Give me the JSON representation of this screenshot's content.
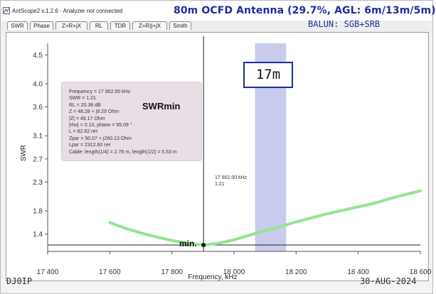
{
  "window": {
    "title": "AntScope2 v.1.2.6 - Analyzer not connected",
    "banner_title": "80m OCFD Antenna (29.7%, AGL: 6m/13m/5m)",
    "balun": "BALUN:   SGB+SRB"
  },
  "tabs": [
    {
      "label": "SWR",
      "active": true
    },
    {
      "label": "Phase",
      "active": false
    },
    {
      "label": "Z=R+jX",
      "active": false
    },
    {
      "label": "RL",
      "active": false
    },
    {
      "label": "TDR",
      "active": false
    },
    {
      "label": "Z=R||+jX",
      "active": false
    },
    {
      "label": "Smith",
      "active": false
    }
  ],
  "marker_info": {
    "lines": [
      "Frequency = 17 902.00 kHz",
      "SWR = 1.21",
      "RL = 20.38 dB",
      "Z = 48.28 + j9.29 Ohm",
      "|Z| = 49.17 Ohm",
      "|rho| = 0.10, phase = 95.09 °",
      "L = 82.62 nH",
      "Zpar = 50.07 + j260.13 Ohm",
      "Lpar = 2312.60 nH",
      "Cable: length(1/4) = 2.76 m, length(1/2) = 5.53 m"
    ],
    "label": "SWRmin"
  },
  "cursor_readout": {
    "frequency": "17 902.00 kHz",
    "swr": "1.21"
  },
  "band_label": "17m",
  "min_label": "min.",
  "footer": {
    "callsign": "DJ0IP",
    "date": "30-AUG-2024"
  },
  "colors": {
    "band_title": "#1d2ca3",
    "curve": "#92e58e",
    "band_highlight": "#c8cbeb",
    "marker": "#111111"
  },
  "chart_data": {
    "type": "line",
    "xlabel": "Frequency, kHz",
    "ylabel": "SWR",
    "xlim": [
      17400,
      18600
    ],
    "ylim": [
      1.1,
      4.7
    ],
    "x_ticks": [
      "17 400",
      "17 600",
      "17 800",
      "18 000",
      "18 200",
      "18 400",
      "18 600"
    ],
    "y_ticks": [
      "1.4",
      "1.8",
      "2.3",
      "2.7",
      "3.1",
      "3.6",
      "4.0",
      "4.5"
    ],
    "grid": false,
    "band_highlight_khz": [
      18068,
      18168
    ],
    "marker": {
      "x": 17902,
      "y": 1.21
    },
    "series": [
      {
        "x": [
          17600,
          17650,
          17700,
          17750,
          17800,
          17850,
          17902,
          17950,
          18000,
          18050,
          18100,
          18150,
          18200,
          18250,
          18300,
          18350,
          18400,
          18450,
          18500,
          18550,
          18600
        ],
        "y": [
          1.6,
          1.5,
          1.42,
          1.35,
          1.29,
          1.24,
          1.21,
          1.24,
          1.3,
          1.38,
          1.46,
          1.53,
          1.61,
          1.68,
          1.75,
          1.81,
          1.87,
          1.93,
          2.01,
          2.08,
          2.15
        ]
      }
    ]
  }
}
